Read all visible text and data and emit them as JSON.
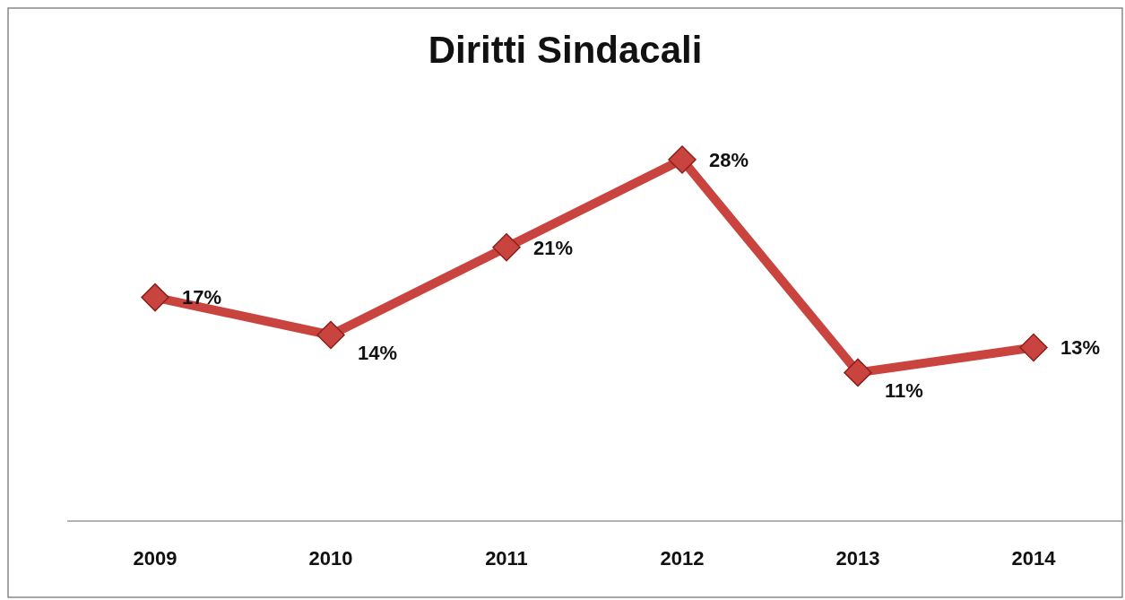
{
  "chart_data": {
    "type": "line",
    "title": "Diritti Sindacali",
    "categories": [
      "2009",
      "2010",
      "2011",
      "2012",
      "2013",
      "2014"
    ],
    "series": [
      {
        "color": "#c9443f",
        "values": [
          17,
          14,
          21,
          28,
          11,
          13
        ],
        "value_labels": [
          "17%",
          "14%",
          "21%",
          "28%",
          "11%",
          "13%"
        ]
      }
    ],
    "marker": "diamond"
  }
}
